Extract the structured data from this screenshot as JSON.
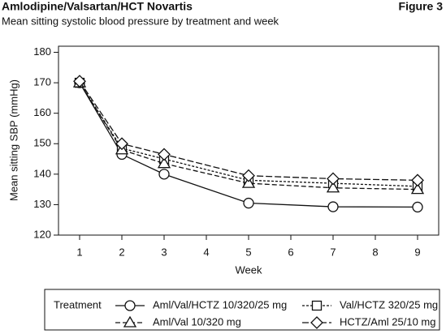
{
  "header": {
    "left": "Amlodipine/Valsartan/HCT Novartis",
    "right": "Figure 3"
  },
  "chart_data": {
    "type": "line",
    "title": "Mean sitting systolic blood pressure by treatment and week",
    "x_label": "Week",
    "y_label": "Mean sitting SBP (mmHg)",
    "x": [
      1,
      2,
      3,
      5,
      7,
      9
    ],
    "xlim": [
      0.5,
      9.5
    ],
    "xticks": [
      1,
      2,
      3,
      4,
      5,
      6,
      7,
      8,
      9
    ],
    "ylim": [
      120,
      182
    ],
    "yticks": [
      120,
      130,
      140,
      150,
      160,
      170,
      180
    ],
    "legend_title": "Treatment",
    "series": [
      {
        "name": "Aml/Val/HCTZ 10/320/25 mg",
        "color": "#111111",
        "marker": "circle",
        "dash": "none",
        "values": [
          170,
          146.5,
          140,
          130.5,
          129.3,
          129.2
        ]
      },
      {
        "name": "Val/HCTZ 320/25 mg",
        "color": "#111111",
        "marker": "square",
        "dash": "3 2",
        "values": [
          170,
          148.5,
          145,
          138,
          137,
          136
        ]
      },
      {
        "name": "Aml/Val 10/320 mg",
        "color": "#111111",
        "marker": "triangle",
        "dash": "6 3",
        "values": [
          170,
          148,
          143.5,
          137,
          135.5,
          135
        ]
      },
      {
        "name": "HCTZ/Aml 25/10 mg",
        "color": "#111111",
        "marker": "diamond",
        "dash": "8 3",
        "values": [
          170.5,
          150,
          146.5,
          139.5,
          138.5,
          138
        ]
      }
    ]
  }
}
